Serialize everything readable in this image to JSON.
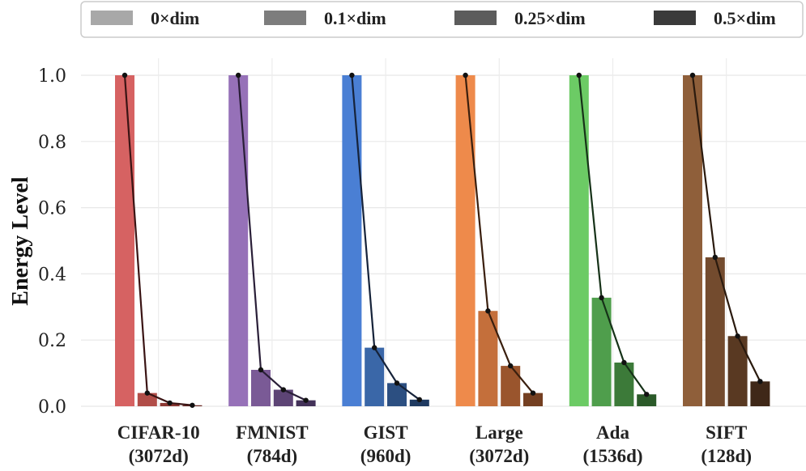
{
  "chart_data": {
    "type": "bar",
    "title": "",
    "xlabel": "",
    "ylabel": "Energy Level",
    "ylim": [
      0,
      1.05
    ],
    "yticks": [
      "0.0",
      "0.2",
      "0.4",
      "0.6",
      "0.8",
      "1.0"
    ],
    "grid": true,
    "legend_position": "top",
    "categories": [
      {
        "name": "CIFAR-10",
        "dim": "(3072d)"
      },
      {
        "name": "FMNIST",
        "dim": "(784d)"
      },
      {
        "name": "GIST",
        "dim": "(960d)"
      },
      {
        "name": "Large",
        "dim": "(3072d)"
      },
      {
        "name": "Ada",
        "dim": "(1536d)"
      },
      {
        "name": "SIFT",
        "dim": "(128d)"
      }
    ],
    "series": [
      {
        "name": "0×dim",
        "values": [
          1.0,
          1.0,
          1.0,
          1.0,
          1.0,
          1.0
        ]
      },
      {
        "name": "0.1×dim",
        "values": [
          0.04,
          0.11,
          0.177,
          0.288,
          0.328,
          0.45
        ]
      },
      {
        "name": "0.25×dim",
        "values": [
          0.01,
          0.05,
          0.07,
          0.122,
          0.132,
          0.212
        ]
      },
      {
        "name": "0.5×dim",
        "values": [
          0.003,
          0.018,
          0.02,
          0.04,
          0.036,
          0.075
        ]
      }
    ],
    "category_colors": [
      [
        "#d66262",
        "#b14d48",
        "#8c3833",
        "#6a2a25"
      ],
      [
        "#9671b8",
        "#7a5a96",
        "#5d4475",
        "#433259"
      ],
      [
        "#4a7fd4",
        "#3a67a8",
        "#2c4f81",
        "#1f3a61"
      ],
      [
        "#ee8a4b",
        "#c46f3b",
        "#9a552d",
        "#743f21"
      ],
      [
        "#6ccb65",
        "#4f9e4c",
        "#3c7a39",
        "#2b5a29"
      ],
      [
        "#8f5f3a",
        "#734b2e",
        "#593922",
        "#3f2818"
      ]
    ],
    "line_colors": [
      "#3a1414",
      "#2a1f38",
      "#16233a",
      "#3a1f0e",
      "#163218",
      "#2a1a0e"
    ],
    "legend_colors": [
      "#a8a8a8",
      "#7d7d7d",
      "#5c5c5c",
      "#3a3a3a"
    ]
  }
}
